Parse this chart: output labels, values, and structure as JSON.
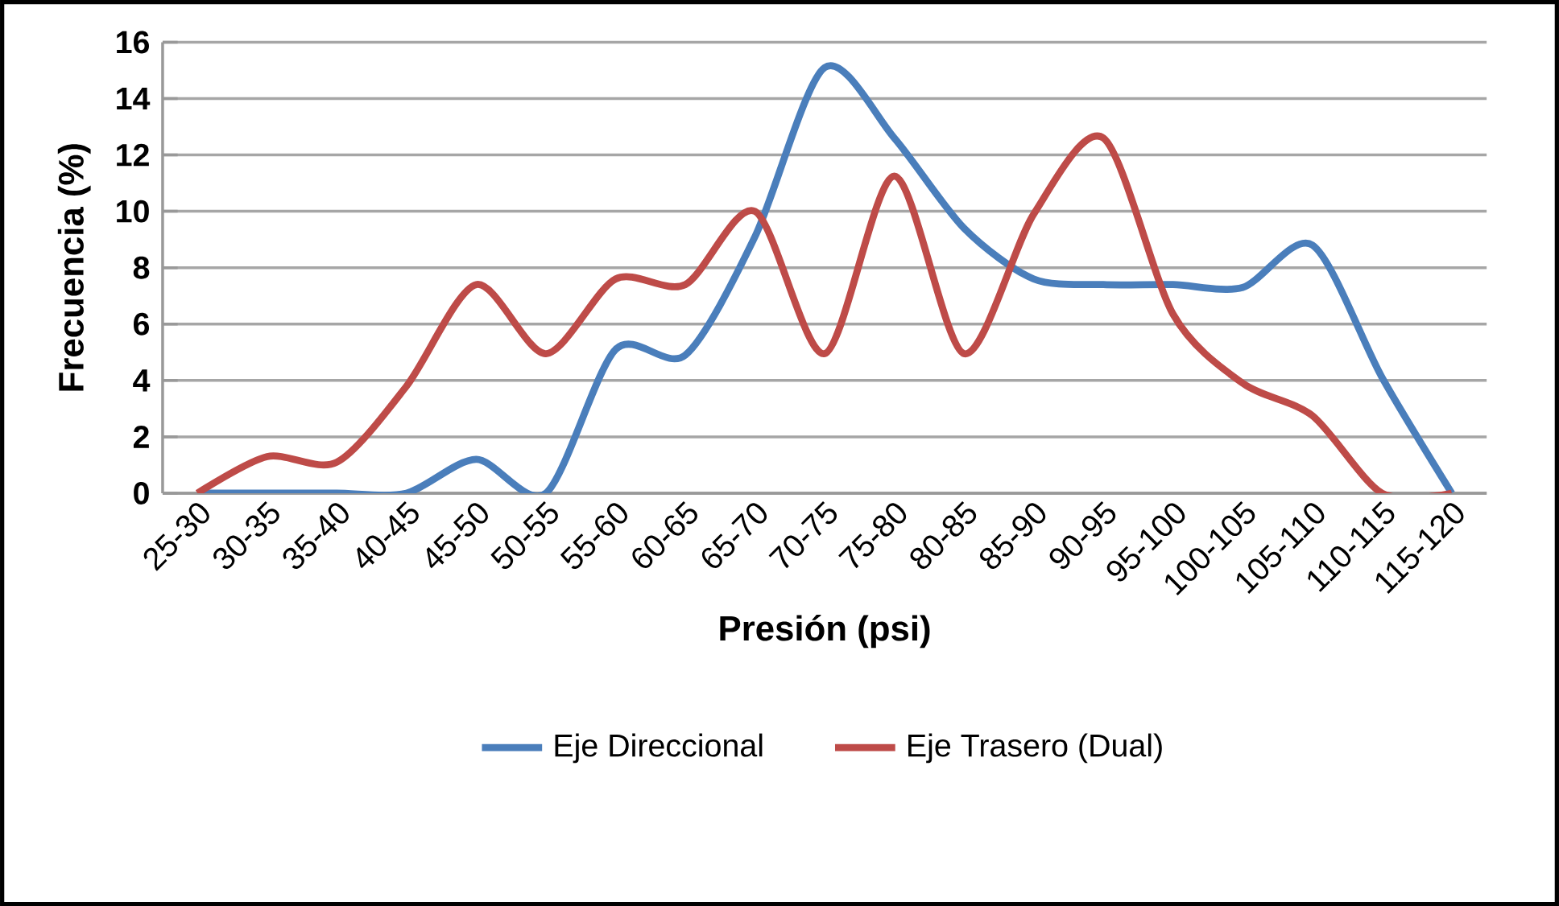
{
  "chart_data": {
    "type": "line",
    "xlabel": "Presión (psi)",
    "ylabel": "Frecuencia (%)",
    "categories": [
      "25-30",
      "30-35",
      "35-40",
      "40-45",
      "45-50",
      "50-55",
      "55-60",
      "60-65",
      "65-70",
      "70-75",
      "75-80",
      "80-85",
      "85-90",
      "90-95",
      "95-100",
      "100-105",
      "105-110",
      "110-115",
      "115-120"
    ],
    "series": [
      {
        "name": "Eje Direccional",
        "color": "#4a7ebb",
        "values": [
          0,
          0,
          0,
          0,
          1.2,
          0,
          5.1,
          4.9,
          9.1,
          15.1,
          12.6,
          9.4,
          7.6,
          7.4,
          7.4,
          7.3,
          8.8,
          4.1,
          0
        ]
      },
      {
        "name": "Eje Trasero (Dual)",
        "color": "#be4b48",
        "values": [
          0,
          1.3,
          1.1,
          3.8,
          7.4,
          4.95,
          7.6,
          7.4,
          10,
          4.95,
          11.25,
          4.95,
          9.9,
          12.6,
          6.35,
          3.9,
          2.75,
          0,
          0
        ]
      }
    ],
    "ylim": [
      0,
      16
    ],
    "yticks": [
      0,
      2,
      4,
      6,
      8,
      10,
      12,
      14,
      16
    ],
    "grid": "y",
    "legend": "bottom",
    "marker": "none",
    "line_style": "solid"
  }
}
